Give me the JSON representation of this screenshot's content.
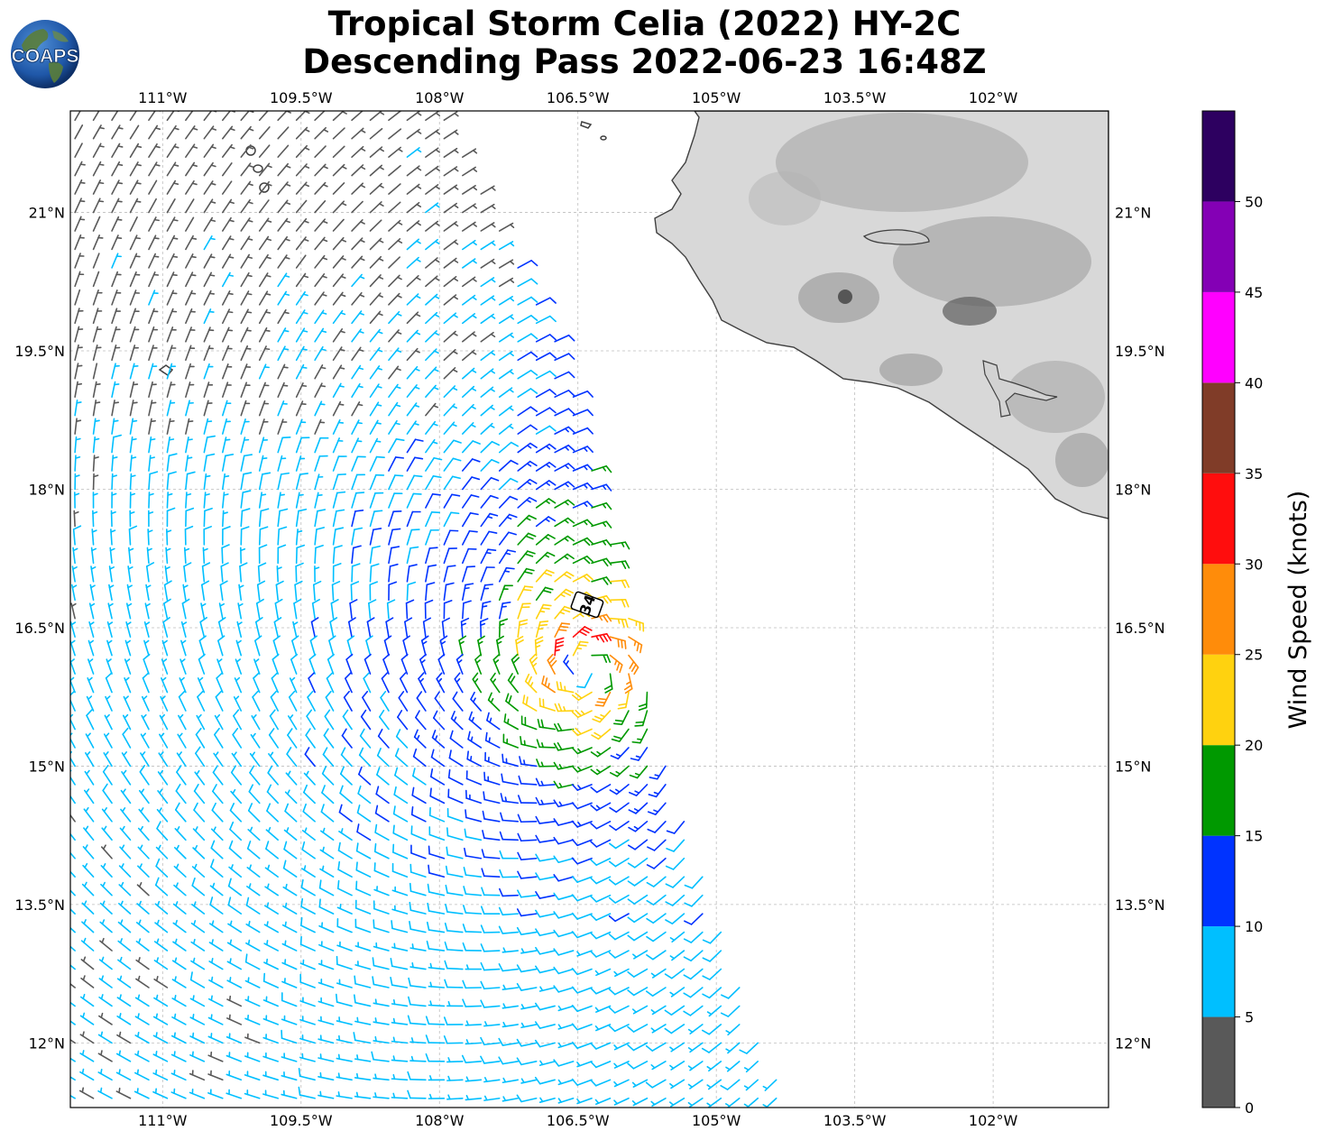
{
  "header": {
    "title_line1": "Tropical Storm Celia (2022) HY-2C",
    "title_line2": "Descending Pass 2022-06-23 16:48Z",
    "logo_text": "COAPS"
  },
  "map": {
    "lon_range": [
      -112,
      -100.75
    ],
    "lat_range": [
      11.3,
      22.1
    ],
    "lon_ticks": [
      {
        "value": -111,
        "label": "111°W"
      },
      {
        "value": -109.5,
        "label": "109.5°W"
      },
      {
        "value": -108,
        "label": "108°W"
      },
      {
        "value": -106.5,
        "label": "106.5°W"
      },
      {
        "value": -105,
        "label": "105°W"
      },
      {
        "value": -103.5,
        "label": "103.5°W"
      },
      {
        "value": -102,
        "label": "102°W"
      }
    ],
    "lat_ticks": [
      {
        "value": 21,
        "label": "21°N"
      },
      {
        "value": 19.5,
        "label": "19.5°N"
      },
      {
        "value": 18,
        "label": "18°N"
      },
      {
        "value": 16.5,
        "label": "16.5°N"
      },
      {
        "value": 15,
        "label": "15°N"
      },
      {
        "value": 13.5,
        "label": "13.5°N"
      },
      {
        "value": 12,
        "label": "12°N"
      }
    ],
    "grid": true,
    "storm_marker": {
      "label": "34",
      "lon": -106.4,
      "lat": 16.75
    },
    "storm_center": {
      "lon": -106.4,
      "lat": 16.05
    },
    "swath_east_edge": [
      {
        "lat": 22.1,
        "lon": -107.9
      },
      {
        "lat": 19.5,
        "lon": -106.7
      },
      {
        "lat": 18.2,
        "lon": -106.3
      },
      {
        "lat": 16.5,
        "lon": -105.9
      },
      {
        "lat": 15.0,
        "lon": -105.5
      },
      {
        "lat": 13.5,
        "lon": -105.0
      },
      {
        "lat": 12.0,
        "lon": -104.5
      },
      {
        "lat": 11.3,
        "lon": -104.1
      }
    ]
  },
  "colorbar": {
    "label": "Wind Speed (knots)",
    "bins": [
      {
        "min": 0,
        "max": 5,
        "color": "#595959"
      },
      {
        "min": 5,
        "max": 10,
        "color": "#00bfff"
      },
      {
        "min": 10,
        "max": 15,
        "color": "#0033ff"
      },
      {
        "min": 15,
        "max": 20,
        "color": "#009900"
      },
      {
        "min": 20,
        "max": 25,
        "color": "#ffd20f"
      },
      {
        "min": 25,
        "max": 30,
        "color": "#ff8c0a"
      },
      {
        "min": 30,
        "max": 35,
        "color": "#ff0d0d"
      },
      {
        "min": 35,
        "max": 40,
        "color": "#803c28"
      },
      {
        "min": 40,
        "max": 45,
        "color": "#ff00ff"
      },
      {
        "min": 45,
        "max": 50,
        "color": "#8400b5"
      },
      {
        "min": 50,
        "max": 55,
        "color": "#2d0060"
      }
    ],
    "ticks": [
      "0",
      "5",
      "10",
      "15",
      "20",
      "25",
      "30",
      "35",
      "40",
      "45",
      "50"
    ]
  },
  "chart_data": {
    "type": "wind barb map",
    "variable": "Wind Speed (knots)",
    "vmin": 0,
    "vmax": 55,
    "max_wind_kt": 34
  }
}
